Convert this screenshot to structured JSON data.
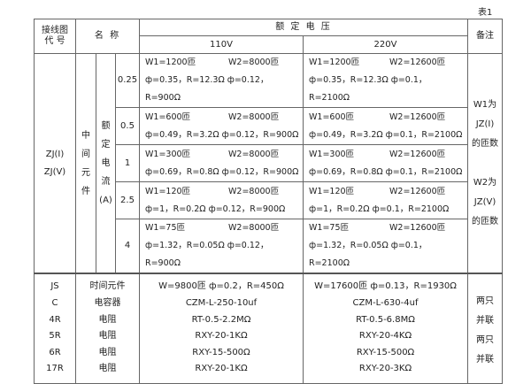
{
  "caption": "表1",
  "header": {
    "code": [
      "接线图",
      "代  号"
    ],
    "name": "名  称",
    "rated_voltage": "额 定 电 压",
    "v110": "110V",
    "v220": "220V",
    "remark": "备注"
  },
  "relay": {
    "codes": [
      "ZJ(I)",
      "ZJ(V)"
    ],
    "element": [
      "中",
      "间",
      "元",
      "件"
    ],
    "current_label": [
      "额",
      "定",
      "电",
      "流",
      "(A)"
    ],
    "rows": [
      {
        "current": "0.25",
        "v110_w1": "W1=1200匝",
        "v110_w2": "W2=8000匝",
        "v110_p": "ф=0.35，R=12.3Ω  ф=0.12，R=900Ω",
        "v220_w1": "W1=1200匝",
        "v220_w2": "W2=12600匝",
        "v220_p": "ф=0.35，R=12.3Ω  ф=0.1，R=2100Ω"
      },
      {
        "current": "0.5",
        "v110_w1": "W1=600匝",
        "v110_w2": "W2=8000匝",
        "v110_p": "ф=0.49，R=3.2Ω  ф=0.12，R=900Ω",
        "v220_w1": "W1=600匝",
        "v220_w2": "W2=12600匝",
        "v220_p": "ф=0.49，R=3.2Ω  ф=0.1，R=2100Ω"
      },
      {
        "current": "1",
        "v110_w1": "W1=300匝",
        "v110_w2": "W2=8000匝",
        "v110_p": "ф=0.69，R=0.8Ω  ф=0.12，R=900Ω",
        "v220_w1": "W1=300匝",
        "v220_w2": "W2=12600匝",
        "v220_p": "ф=0.69，R=0.8Ω  ф=0.1，R=2100Ω"
      },
      {
        "current": "2.5",
        "v110_w1": "W1=120匝",
        "v110_w2": "W2=8000匝",
        "v110_p": "ф=1，R=0.2Ω    ф=0.12，R=900Ω",
        "v220_w1": "W1=120匝",
        "v220_w2": "W2=12600匝",
        "v220_p": "ф=1，R=0.2Ω    ф=0.1，R=2100Ω"
      },
      {
        "current": "4",
        "v110_w1": "W1=75匝",
        "v110_w2": "W2=8000匝",
        "v110_p": "ф=1.32，R=0.05Ω  ф=0.12，R=900Ω",
        "v220_w1": "W1=75匝",
        "v220_w2": "W2=12600匝",
        "v220_p": "ф=1.32，R=0.05Ω  ф=0.1，R=2100Ω"
      }
    ],
    "remark": [
      "W1为",
      "JZ(I)",
      "的匝数",
      "",
      "W2为",
      "JZ(V)",
      "的匝数"
    ]
  },
  "components": {
    "codes": [
      "JS",
      "C",
      "4R",
      "5R",
      "6R",
      "17R"
    ],
    "names": [
      "时间元件",
      "电容器",
      "电阻",
      "电阻",
      "电阻",
      "电阻"
    ],
    "v110": [
      "W=9800匝  ф=0.2，R=450Ω",
      "CZM-L-250-10uf",
      "RT-0.5-2.2MΩ",
      "RXY-20-1KΩ",
      "RXY-15-500Ω",
      "RXY-20-1KΩ"
    ],
    "v220": [
      "W=17600匝  ф=0.13，R=1930Ω",
      "CZM-L-630-4uf",
      "RT-0.5-6.8MΩ",
      "RXY-20-4KΩ",
      "RXY-15-500Ω",
      "RXY-20-3KΩ"
    ],
    "remark": [
      "两只",
      "并联",
      "两只",
      "并联"
    ]
  }
}
